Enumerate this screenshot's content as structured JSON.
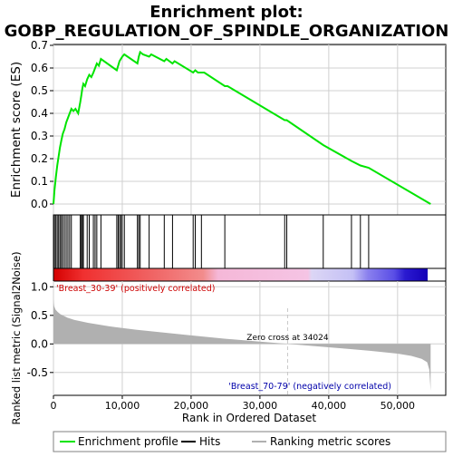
{
  "title_line1": "Enrichment plot:",
  "title_line2": "GOBP_REGULATION_OF_SPINDLE_ORGANIZATION",
  "colors": {
    "es_line": "#00e400",
    "hit": "#000000",
    "metric_fill": "#b0b0b0",
    "grid": "#d0d0d0",
    "positive_label": "#cc0000",
    "negative_label": "#0000aa",
    "zero_cross_line": "#c8c8c8"
  },
  "chart_data": [
    {
      "type": "line",
      "panel": "enrichment",
      "ylabel": "Enrichment score (ES)",
      "xlim": [
        0,
        57000
      ],
      "ylim": [
        0,
        0.7
      ],
      "yticks": [
        0.0,
        0.1,
        0.2,
        0.3,
        0.4,
        0.5,
        0.6,
        0.7
      ],
      "ytick_labels": [
        "0.0",
        "0.1",
        "0.2",
        "0.3",
        "0.4",
        "0.5",
        "0.6",
        "0.7"
      ],
      "grid": true,
      "series": [
        {
          "x": [
            0,
            150,
            350,
            550,
            750,
            950,
            1150,
            1350,
            1600,
            1850,
            2100,
            2350,
            2600,
            2900,
            3200,
            3600,
            3900,
            4050,
            4200,
            4350,
            4600,
            4900,
            5200,
            5500,
            5800,
            6050,
            6300,
            6600,
            6900,
            9200,
            9400,
            9600,
            9800,
            10000,
            10300,
            12200,
            12400,
            12600,
            13000,
            13900,
            14200,
            16100,
            16400,
            17300,
            17600,
            20300,
            20600,
            21000,
            21500,
            21900,
            24900,
            25300,
            33600,
            33900,
            39200,
            43300,
            44600,
            45800,
            54800
          ],
          "y": [
            0.0,
            0.06,
            0.12,
            0.17,
            0.21,
            0.25,
            0.28,
            0.31,
            0.33,
            0.36,
            0.38,
            0.4,
            0.42,
            0.41,
            0.42,
            0.4,
            0.45,
            0.48,
            0.51,
            0.53,
            0.52,
            0.55,
            0.57,
            0.56,
            0.58,
            0.6,
            0.62,
            0.61,
            0.64,
            0.59,
            0.61,
            0.63,
            0.64,
            0.65,
            0.66,
            0.62,
            0.65,
            0.67,
            0.66,
            0.65,
            0.66,
            0.63,
            0.64,
            0.62,
            0.63,
            0.58,
            0.59,
            0.58,
            0.58,
            0.58,
            0.52,
            0.52,
            0.37,
            0.37,
            0.26,
            0.19,
            0.17,
            0.16,
            0.0
          ]
        }
      ]
    },
    {
      "type": "scatter",
      "panel": "hits",
      "hit_positions": [
        150,
        350,
        550,
        750,
        950,
        1150,
        1350,
        1600,
        1850,
        2100,
        2350,
        2600,
        3900,
        4050,
        4200,
        4350,
        4900,
        5200,
        5800,
        6050,
        6300,
        6900,
        9200,
        9400,
        9600,
        9800,
        10000,
        10300,
        12200,
        12400,
        12600,
        13900,
        16100,
        17300,
        20300,
        20600,
        21500,
        24900,
        33600,
        33900,
        39200,
        43300,
        44600,
        45800
      ]
    },
    {
      "type": "area",
      "panel": "ranked_metric",
      "ylabel": "Ranked list metric (Signal2Noise)",
      "xlabel": "Rank in Ordered Dataset",
      "xlim": [
        0,
        57000
      ],
      "ylim": [
        -0.9,
        1.1
      ],
      "xticks": [
        0,
        10000,
        20000,
        30000,
        40000,
        50000
      ],
      "xtick_labels": [
        "0",
        "10,000",
        "20,000",
        "30,000",
        "40,000",
        "50,000"
      ],
      "yticks": [
        -0.5,
        0.0,
        0.5,
        1.0
      ],
      "ytick_labels": [
        "-0.5",
        "0.0",
        "0.5",
        "1.0"
      ],
      "grid": true,
      "x": [
        0,
        100,
        300,
        600,
        1000,
        2000,
        3000,
        5000,
        8000,
        12000,
        16000,
        20000,
        25000,
        30000,
        34024,
        38000,
        42000,
        46000,
        50000,
        52000,
        53500,
        54300,
        54600,
        54800
      ],
      "y": [
        0.78,
        0.66,
        0.6,
        0.56,
        0.52,
        0.46,
        0.42,
        0.37,
        0.31,
        0.25,
        0.2,
        0.15,
        0.09,
        0.04,
        0.0,
        -0.04,
        -0.08,
        -0.12,
        -0.17,
        -0.21,
        -0.26,
        -0.32,
        -0.45,
        -0.82
      ],
      "zero_cross_label": "Zero cross at 34024",
      "zero_cross_x": 34024,
      "positive_label": "'Breast_30-39' (positively correlated)",
      "negative_label": "'Breast_70-79' (negatively correlated)"
    }
  ],
  "legend": {
    "placement": "bottom",
    "items": [
      {
        "label": "Enrichment profile",
        "style": "green-line"
      },
      {
        "label": "Hits",
        "style": "black-line"
      },
      {
        "label": "Ranking metric scores",
        "style": "gray-line"
      }
    ]
  }
}
